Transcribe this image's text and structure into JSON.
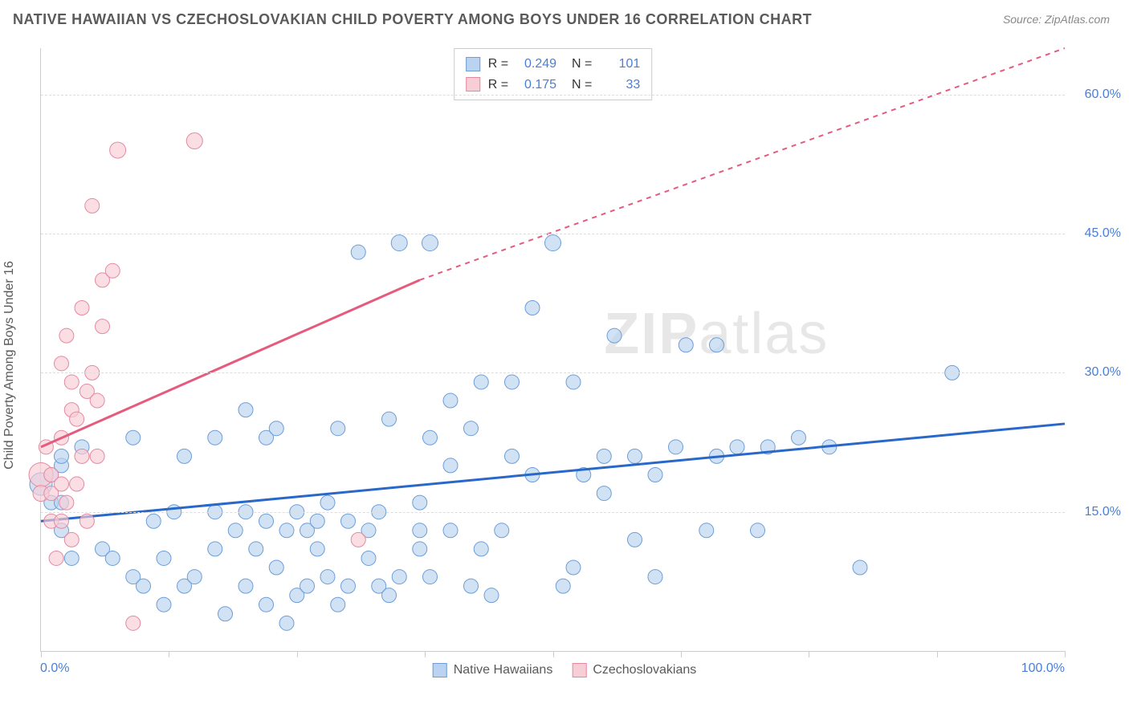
{
  "header": {
    "title": "NATIVE HAWAIIAN VS CZECHOSLOVAKIAN CHILD POVERTY AMONG BOYS UNDER 16 CORRELATION CHART",
    "source": "Source: ZipAtlas.com"
  },
  "axes": {
    "y_label": "Child Poverty Among Boys Under 16",
    "x_min_label": "0.0%",
    "x_max_label": "100.0%",
    "x_min": 0,
    "x_max": 100,
    "y_min": 0,
    "y_max": 65,
    "y_ticks": [
      15.0,
      30.0,
      45.0,
      60.0
    ],
    "y_tick_labels": [
      "15.0%",
      "30.0%",
      "45.0%",
      "60.0%"
    ],
    "x_tick_positions": [
      0,
      12.5,
      25,
      37.5,
      50,
      62.5,
      75,
      87.5,
      100
    ],
    "grid_color": "#dddddd",
    "axis_color": "#cccccc",
    "label_color": "#5a5a5a",
    "tick_label_color": "#4a7ed6"
  },
  "series": [
    {
      "id": "native_hawaiians",
      "name": "Native Hawaiians",
      "fill": "#b9d3f0",
      "stroke": "#6c9ed8",
      "line_color": "#2968c8",
      "R": "0.249",
      "N": "101",
      "trend": {
        "x1": 0,
        "y1": 14,
        "x2": 100,
        "y2": 24.5,
        "dash_after_x": 100
      },
      "points": [
        [
          0,
          18,
          14
        ],
        [
          1,
          16,
          9
        ],
        [
          1,
          19,
          9
        ],
        [
          2,
          13,
          9
        ],
        [
          2,
          16,
          9
        ],
        [
          2,
          20,
          9
        ],
        [
          2,
          21,
          9
        ],
        [
          3,
          10,
          9
        ],
        [
          4,
          22,
          9
        ],
        [
          6,
          11,
          9
        ],
        [
          7,
          10,
          9
        ],
        [
          9,
          8,
          9
        ],
        [
          9,
          23,
          9
        ],
        [
          10,
          7,
          9
        ],
        [
          11,
          14,
          9
        ],
        [
          12,
          5,
          9
        ],
        [
          12,
          10,
          9
        ],
        [
          13,
          15,
          9
        ],
        [
          14,
          7,
          9
        ],
        [
          14,
          21,
          9
        ],
        [
          15,
          8,
          9
        ],
        [
          17,
          11,
          9
        ],
        [
          17,
          15,
          9
        ],
        [
          17,
          23,
          9
        ],
        [
          18,
          4,
          9
        ],
        [
          19,
          13,
          9
        ],
        [
          20,
          7,
          9
        ],
        [
          20,
          15,
          9
        ],
        [
          20,
          26,
          9
        ],
        [
          21,
          11,
          9
        ],
        [
          22,
          5,
          9
        ],
        [
          22,
          14,
          9
        ],
        [
          22,
          23,
          9
        ],
        [
          23,
          9,
          9
        ],
        [
          23,
          24,
          9
        ],
        [
          24,
          3,
          9
        ],
        [
          24,
          13,
          9
        ],
        [
          25,
          6,
          9
        ],
        [
          25,
          15,
          9
        ],
        [
          26,
          7,
          9
        ],
        [
          26,
          13,
          9
        ],
        [
          27,
          11,
          9
        ],
        [
          27,
          14,
          9
        ],
        [
          28,
          8,
          9
        ],
        [
          28,
          16,
          9
        ],
        [
          29,
          5,
          9
        ],
        [
          29,
          24,
          9
        ],
        [
          30,
          7,
          9
        ],
        [
          30,
          14,
          9
        ],
        [
          31,
          43,
          9
        ],
        [
          32,
          10,
          9
        ],
        [
          32,
          13,
          9
        ],
        [
          33,
          7,
          9
        ],
        [
          33,
          15,
          9
        ],
        [
          34,
          6,
          9
        ],
        [
          34,
          25,
          9
        ],
        [
          35,
          8,
          9
        ],
        [
          35,
          44,
          10
        ],
        [
          37,
          11,
          9
        ],
        [
          37,
          13,
          9
        ],
        [
          37,
          16,
          9
        ],
        [
          38,
          8,
          9
        ],
        [
          38,
          23,
          9
        ],
        [
          38,
          44,
          10
        ],
        [
          40,
          13,
          9
        ],
        [
          40,
          20,
          9
        ],
        [
          40,
          27,
          9
        ],
        [
          42,
          7,
          9
        ],
        [
          42,
          24,
          9
        ],
        [
          43,
          11,
          9
        ],
        [
          43,
          29,
          9
        ],
        [
          44,
          6,
          9
        ],
        [
          45,
          13,
          9
        ],
        [
          46,
          21,
          9
        ],
        [
          46,
          29,
          9
        ],
        [
          48,
          19,
          9
        ],
        [
          48,
          37,
          9
        ],
        [
          50,
          44,
          10
        ],
        [
          51,
          7,
          9
        ],
        [
          52,
          9,
          9
        ],
        [
          52,
          29,
          9
        ],
        [
          53,
          19,
          9
        ],
        [
          55,
          17,
          9
        ],
        [
          55,
          21,
          9
        ],
        [
          56,
          34,
          9
        ],
        [
          58,
          12,
          9
        ],
        [
          58,
          21,
          9
        ],
        [
          60,
          8,
          9
        ],
        [
          60,
          19,
          9
        ],
        [
          62,
          22,
          9
        ],
        [
          63,
          33,
          9
        ],
        [
          65,
          13,
          9
        ],
        [
          66,
          21,
          9
        ],
        [
          66,
          33,
          9
        ],
        [
          68,
          22,
          9
        ],
        [
          70,
          13,
          9
        ],
        [
          71,
          22,
          9
        ],
        [
          74,
          23,
          9
        ],
        [
          77,
          22,
          9
        ],
        [
          80,
          9,
          9
        ],
        [
          89,
          30,
          9
        ]
      ]
    },
    {
      "id": "czechoslovakians",
      "name": "Czechoslovakians",
      "fill": "#f7cdd6",
      "stroke": "#e589a1",
      "line_color": "#e55a7d",
      "R": "0.175",
      "N": "33",
      "trend": {
        "x1": 0,
        "y1": 22,
        "x2": 37,
        "y2": 40,
        "dash_after_x": 37,
        "x3": 100,
        "y3": 65
      },
      "points": [
        [
          0,
          19,
          15
        ],
        [
          0,
          17,
          10
        ],
        [
          0.5,
          22,
          9
        ],
        [
          1,
          14,
          9
        ],
        [
          1,
          17,
          9
        ],
        [
          1,
          19,
          9
        ],
        [
          1.5,
          10,
          9
        ],
        [
          2,
          14,
          9
        ],
        [
          2,
          18,
          9
        ],
        [
          2,
          23,
          9
        ],
        [
          2,
          31,
          9
        ],
        [
          2.5,
          16,
          9
        ],
        [
          2.5,
          34,
          9
        ],
        [
          3,
          12,
          9
        ],
        [
          3,
          26,
          9
        ],
        [
          3,
          29,
          9
        ],
        [
          3.5,
          18,
          9
        ],
        [
          3.5,
          25,
          9
        ],
        [
          4,
          21,
          9
        ],
        [
          4,
          37,
          9
        ],
        [
          4.5,
          14,
          9
        ],
        [
          4.5,
          28,
          9
        ],
        [
          5,
          30,
          9
        ],
        [
          5,
          48,
          9
        ],
        [
          5.5,
          21,
          9
        ],
        [
          5.5,
          27,
          9
        ],
        [
          6,
          35,
          9
        ],
        [
          6,
          40,
          9
        ],
        [
          7,
          41,
          9
        ],
        [
          7.5,
          54,
          10
        ],
        [
          9,
          3,
          9
        ],
        [
          15,
          55,
          10
        ],
        [
          31,
          12,
          9
        ]
      ]
    }
  ],
  "legend": {
    "items": [
      {
        "label": "Native Hawaiians",
        "fill": "#b9d3f0",
        "stroke": "#6c9ed8"
      },
      {
        "label": "Czechoslovakians",
        "fill": "#f7cdd6",
        "stroke": "#e589a1"
      }
    ]
  },
  "watermark": {
    "prefix": "ZIP",
    "suffix": "atlas"
  },
  "colors": {
    "background": "#ffffff",
    "title": "#5a5a5a",
    "source": "#888888"
  }
}
